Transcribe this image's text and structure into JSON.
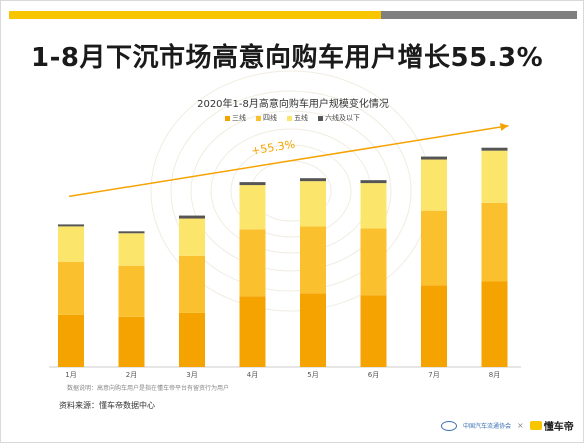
{
  "headline": "1-8月下沉市场高意向购车用户增长55.3%",
  "note": "数据说明：高意向购车用户是指在懂车帝平台有留资行为用户",
  "source": "资料来源：懂车帝数据中心",
  "logos": {
    "left_text": "中国汽车流通协会",
    "times": "×",
    "right_text": "懂车帝"
  },
  "colors": {
    "accent": "#f7c600",
    "gray_bar": "#7f7f7f"
  },
  "chart_data": {
    "type": "bar",
    "stacked": true,
    "title": "2020年1-8月高意向购车用户规模变化情况",
    "xlabel": "",
    "ylabel": "",
    "categories": [
      "1月",
      "2月",
      "3月",
      "4月",
      "5月",
      "6月",
      "7月",
      "8月"
    ],
    "series": [
      {
        "name": "三线",
        "color": "#f5a300",
        "values": [
          53,
          51,
          55,
          72,
          75,
          73,
          83,
          87
        ]
      },
      {
        "name": "四线",
        "color": "#fbc02d",
        "values": [
          54,
          52,
          58,
          68,
          68,
          68,
          76,
          80
        ]
      },
      {
        "name": "五线",
        "color": "#fce56b",
        "values": [
          36,
          33,
          38,
          45,
          46,
          46,
          52,
          53
        ]
      },
      {
        "name": "六线及以下",
        "color": "#555555",
        "values": [
          2,
          2,
          3,
          3,
          3,
          3,
          3,
          3
        ]
      }
    ],
    "ylim": [
      0,
      240
    ],
    "annotation": {
      "label": "+55.3%",
      "color": "#f5a300"
    },
    "grid": false,
    "legend_position": "top-center"
  }
}
